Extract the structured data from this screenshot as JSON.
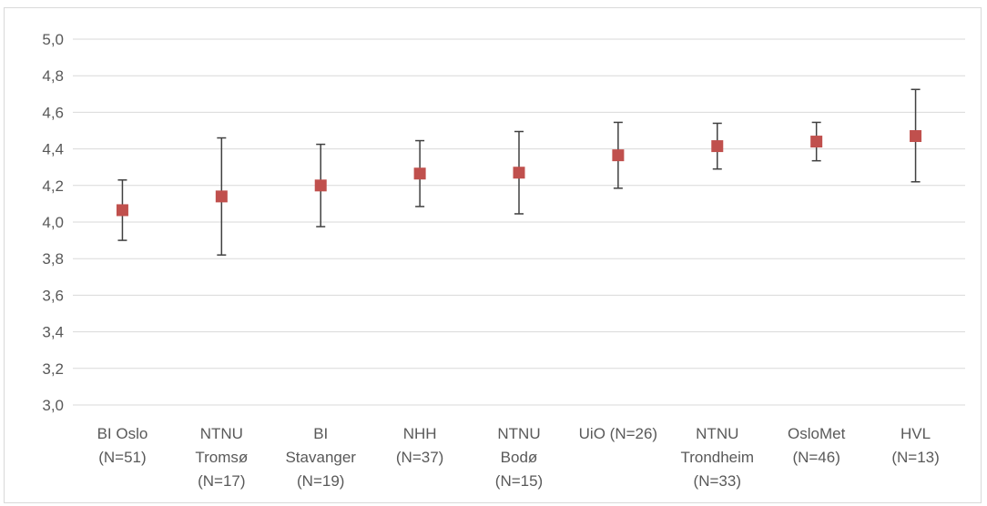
{
  "chart_data": {
    "type": "scatter",
    "title": "",
    "xlabel": "",
    "ylabel": "",
    "ylim": [
      3.0,
      5.0
    ],
    "yticks": [
      "3,0",
      "3,2",
      "3,4",
      "3,6",
      "3,8",
      "4,0",
      "4,2",
      "4,4",
      "4,6",
      "4,8",
      "5,0"
    ],
    "grid": true,
    "marker_color": "#c0504d",
    "error_bar_color": "#404040",
    "categories": [
      {
        "label_lines": [
          "BI Oslo",
          "(N=51)"
        ],
        "value": 4.065,
        "low": 3.9,
        "high": 4.23
      },
      {
        "label_lines": [
          "NTNU",
          "Tromsø",
          "(N=17)"
        ],
        "value": 4.14,
        "low": 3.82,
        "high": 4.46
      },
      {
        "label_lines": [
          "BI",
          "Stavanger",
          "(N=19)"
        ],
        "value": 4.2,
        "low": 3.975,
        "high": 4.425
      },
      {
        "label_lines": [
          "NHH",
          "(N=37)"
        ],
        "value": 4.265,
        "low": 4.085,
        "high": 4.445
      },
      {
        "label_lines": [
          "NTNU",
          "Bodø",
          "(N=15)"
        ],
        "value": 4.27,
        "low": 4.045,
        "high": 4.495
      },
      {
        "label_lines": [
          "UiO (N=26)"
        ],
        "value": 4.365,
        "low": 4.185,
        "high": 4.545
      },
      {
        "label_lines": [
          "NTNU",
          "Trondheim",
          "(N=33)"
        ],
        "value": 4.415,
        "low": 4.29,
        "high": 4.54
      },
      {
        "label_lines": [
          "OsloMet",
          "(N=46)"
        ],
        "value": 4.44,
        "low": 4.335,
        "high": 4.545
      },
      {
        "label_lines": [
          "HVL",
          "(N=13)"
        ],
        "value": 4.47,
        "low": 4.22,
        "high": 4.725
      }
    ]
  }
}
